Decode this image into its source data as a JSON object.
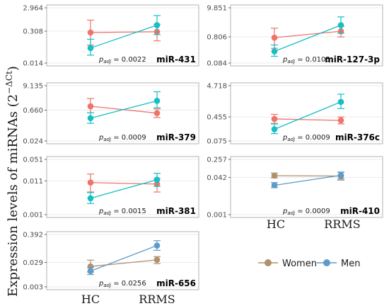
{
  "chart_data": {
    "type": "line",
    "ylabel_main": "Expression levels of miRNAs (2",
    "ylabel_exp": "−ΔCt",
    "ylabel_close": ")",
    "categories": [
      "HC",
      "RRMS"
    ],
    "scale": "log",
    "legend": {
      "placement": "bottom-right",
      "items": [
        {
          "name": "Women",
          "color": "#B0906E"
        },
        {
          "name": "Men",
          "color": "#5E9BC8"
        }
      ]
    },
    "colors": {
      "women_red": "#F0736A",
      "men_cyan": "#14BFC6",
      "women_olive": "#B0906E",
      "men_blue": "#5E9BC8"
    },
    "panels": [
      {
        "id": "miR-431",
        "label": "miR-431",
        "p_label": "p",
        "p_sub": "adj",
        "p_value": " = 0.0022",
        "ticks": [
          "2.964",
          "0.308",
          "0.014"
        ],
        "tick_values": [
          2.964,
          0.308,
          0.014
        ],
        "series": [
          {
            "name": "Women",
            "color": "#F0736A",
            "values": [
              0.27,
              0.29
            ],
            "err_low": [
              0.08,
              0.12
            ],
            "err_high": [
              0.9,
              0.6
            ]
          },
          {
            "name": "Men",
            "color": "#14BFC6",
            "values": [
              0.06,
              0.55
            ],
            "err_low": [
              0.03,
              0.22
            ],
            "err_high": [
              0.14,
              1.4
            ]
          }
        ]
      },
      {
        "id": "miR-127-3p",
        "label": "miR-127-3p",
        "p_label": "p",
        "p_sub": "adj",
        "p_value": " = 0.0105",
        "ticks": [
          "9.851",
          "0.806",
          "0.084"
        ],
        "tick_values": [
          9.851,
          0.806,
          0.084
        ],
        "series": [
          {
            "name": "Women",
            "color": "#F0736A",
            "values": [
              0.75,
              1.3
            ],
            "err_low": [
              0.3,
              0.8
            ],
            "err_high": [
              1.7,
              2.0
            ]
          },
          {
            "name": "Men",
            "color": "#14BFC6",
            "values": [
              0.23,
              2.2
            ],
            "err_low": [
              0.15,
              1.1
            ],
            "err_high": [
              0.4,
              4.5
            ]
          }
        ]
      },
      {
        "id": "miR-379",
        "label": "miR-379",
        "p_label": "p",
        "p_sub": "adj",
        "p_value": " = 0.0009",
        "ticks": [
          "9.135",
          "0.660",
          "0.024"
        ],
        "tick_values": [
          9.135,
          0.66,
          0.024
        ],
        "series": [
          {
            "name": "Women",
            "color": "#F0736A",
            "values": [
              1.0,
              0.48
            ],
            "err_low": [
              0.5,
              0.3
            ],
            "err_high": [
              2.3,
              0.75
            ]
          },
          {
            "name": "Men",
            "color": "#14BFC6",
            "values": [
              0.28,
              1.8
            ],
            "err_low": [
              0.16,
              0.85
            ],
            "err_high": [
              0.5,
              4.8
            ]
          }
        ]
      },
      {
        "id": "miR-376c",
        "label": "miR-376c",
        "p_label": "p",
        "p_sub": "adj",
        "p_value": " = 0.0009",
        "ticks": [
          "4.718",
          "0.455",
          "0.075"
        ],
        "tick_values": [
          4.718,
          0.455,
          0.075
        ],
        "series": [
          {
            "name": "Women",
            "color": "#F0736A",
            "values": [
              0.39,
              0.35
            ],
            "err_low": [
              0.28,
              0.27
            ],
            "err_high": [
              0.55,
              0.45
            ]
          },
          {
            "name": "Men",
            "color": "#14BFC6",
            "values": [
              0.18,
              1.4
            ],
            "err_low": [
              0.13,
              0.85
            ],
            "err_high": [
              0.27,
              2.5
            ]
          }
        ]
      },
      {
        "id": "miR-381",
        "label": "miR-381",
        "p_label": "p",
        "p_sub": "adj",
        "p_value": " = 0.0015",
        "ticks": [
          "0.051",
          "0.011",
          "0.001"
        ],
        "tick_values": [
          0.051,
          0.011,
          0.001
        ],
        "series": [
          {
            "name": "Women",
            "color": "#F0736A",
            "values": [
              0.0098,
              0.0088
            ],
            "err_low": [
              0.005,
              0.005
            ],
            "err_high": [
              0.018,
              0.013
            ]
          },
          {
            "name": "Men",
            "color": "#14BFC6",
            "values": [
              0.0032,
              0.012
            ],
            "err_low": [
              0.0022,
              0.0075
            ],
            "err_high": [
              0.0048,
              0.019
            ]
          }
        ]
      },
      {
        "id": "miR-410",
        "label": "miR-410",
        "p_label": "p",
        "p_sub": "adj",
        "p_value": " = 0.0009",
        "ticks": [
          "0.257",
          "0.042",
          "0.001"
        ],
        "tick_values": [
          0.257,
          0.042,
          0.001
        ],
        "series": [
          {
            "name": "Women",
            "color": "#B0906E",
            "values": [
              0.05,
              0.048
            ],
            "err_low": [
              0.04,
              0.032
            ],
            "err_high": [
              0.065,
              0.07
            ]
          },
          {
            "name": "Men",
            "color": "#5E9BC8",
            "values": [
              0.019,
              0.052
            ],
            "err_low": [
              0.015,
              0.036
            ],
            "err_high": [
              0.025,
              0.072
            ]
          }
        ]
      },
      {
        "id": "miR-656",
        "label": "miR-656",
        "p_label": "p",
        "p_sub": "adj",
        "p_value": " = 0.0256",
        "ticks": [
          "0.392",
          "0.029",
          "0.003"
        ],
        "tick_values": [
          0.392,
          0.029,
          0.003
        ],
        "series": [
          {
            "name": "Women",
            "color": "#B0906E",
            "values": [
              0.02,
              0.037
            ],
            "err_low": [
              0.012,
              0.026
            ],
            "err_high": [
              0.036,
              0.05
            ]
          },
          {
            "name": "Men",
            "color": "#5E9BC8",
            "values": [
              0.013,
              0.14
            ],
            "err_low": [
              0.0095,
              0.09
            ],
            "err_high": [
              0.018,
              0.22
            ]
          }
        ]
      }
    ]
  }
}
